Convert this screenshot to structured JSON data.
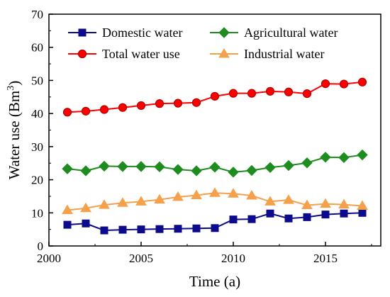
{
  "chart_data": {
    "type": "line",
    "xlabel": "Time (a)",
    "ylabel": "Water use (Bm",
    "ylabel_sup": "3",
    "ylabel_end": ")",
    "xlim": [
      2000,
      2018
    ],
    "ylim": [
      0,
      70
    ],
    "xticks": [
      2000,
      2005,
      2010,
      2015
    ],
    "yticks": [
      0,
      10,
      20,
      30,
      40,
      50,
      60,
      70
    ],
    "grid": false,
    "legend_position": "top-left",
    "x": [
      2001,
      2002,
      2003,
      2004,
      2005,
      2006,
      2007,
      2008,
      2009,
      2010,
      2011,
      2012,
      2013,
      2014,
      2015,
      2016,
      2017
    ],
    "series": [
      {
        "name": "Domestic water",
        "color": "#0b0b8c",
        "marker": "square",
        "values": [
          6.4,
          6.8,
          4.7,
          4.9,
          5.0,
          5.1,
          5.2,
          5.3,
          5.4,
          8.0,
          8.1,
          9.8,
          8.3,
          8.7,
          9.5,
          9.8,
          10.0
        ]
      },
      {
        "name": "Agricultural water",
        "color": "#1e8c1e",
        "marker": "diamond",
        "values": [
          23.3,
          22.7,
          24.1,
          24.0,
          24.0,
          23.9,
          23.1,
          22.7,
          23.8,
          22.3,
          22.8,
          23.7,
          24.3,
          25.1,
          26.8,
          26.7,
          27.5
        ]
      },
      {
        "name": "Total water use",
        "color": "#ff0000",
        "marker": "circle",
        "values": [
          40.4,
          40.7,
          41.2,
          41.8,
          42.4,
          43.0,
          43.1,
          43.3,
          45.2,
          46.1,
          46.1,
          46.7,
          46.5,
          46.0,
          49.0,
          48.9,
          49.5
        ]
      },
      {
        "name": "Industrial water",
        "color": "#f5a04b",
        "marker": "triangle",
        "values": [
          10.8,
          11.4,
          12.4,
          13.0,
          13.4,
          14.0,
          14.8,
          15.3,
          16.0,
          15.8,
          15.2,
          13.4,
          13.9,
          12.3,
          12.7,
          12.5,
          12.1
        ]
      }
    ]
  }
}
